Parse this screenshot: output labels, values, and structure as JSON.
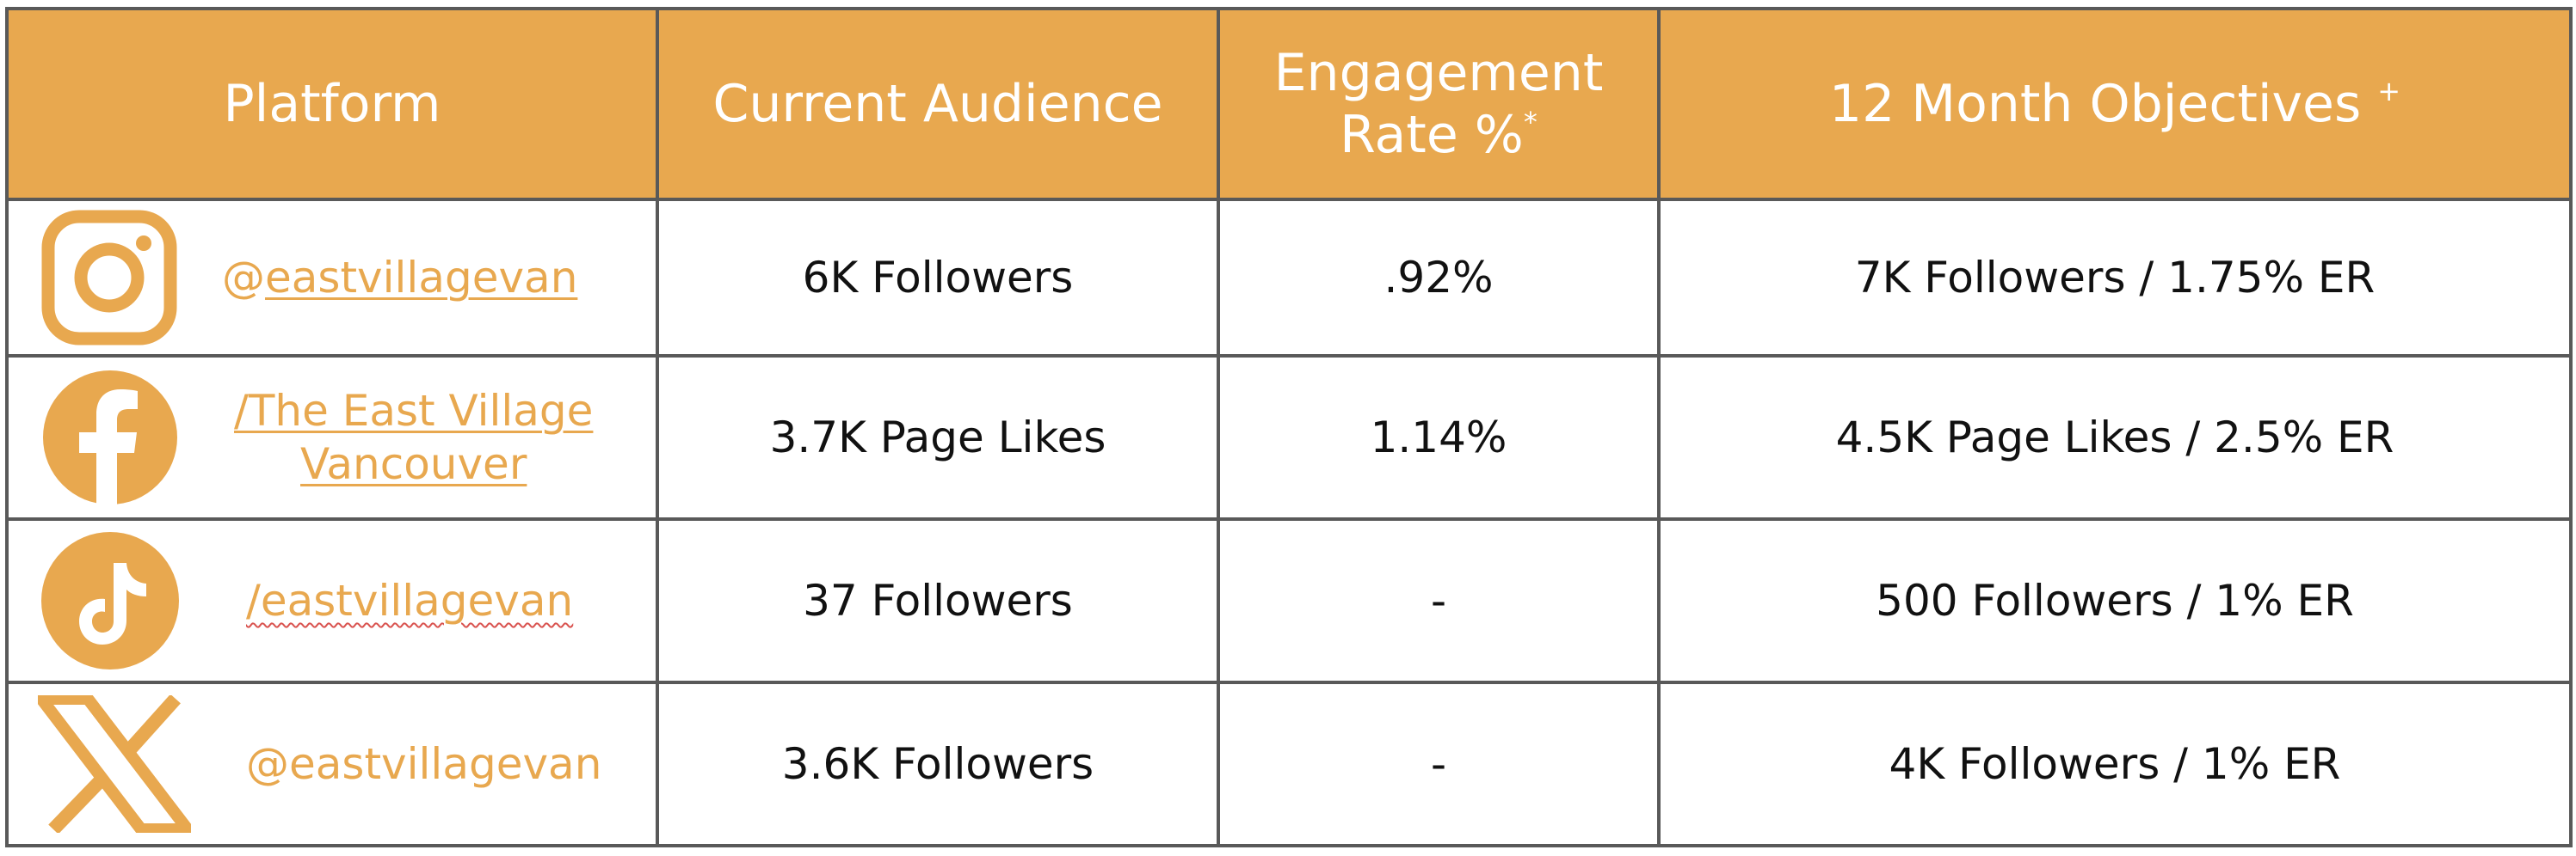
{
  "colors": {
    "header_bg": "#e8a84f",
    "accent": "#e8a84f",
    "border": "#595959",
    "text": "#111111"
  },
  "header": {
    "platform": "Platform",
    "audience": "Current Audience",
    "engagement_line1": "Engagement",
    "engagement_line2": "Rate %",
    "engagement_mark": "*",
    "objectives": "12 Month Objectives",
    "objectives_mark": "+"
  },
  "rows": [
    {
      "icon": "instagram-icon",
      "prefix": "@",
      "handle": "eastvillagevan",
      "audience": "6K Followers",
      "engagement": ".92%",
      "objective": "7K Followers / 1.75% ER"
    },
    {
      "icon": "facebook-icon",
      "handle_line1": "/The East Village",
      "handle_line2": "Vancouver",
      "audience": "3.7K Page Likes",
      "engagement": "1.14%",
      "objective": "4.5K Page Likes / 2.5% ER"
    },
    {
      "icon": "tiktok-icon",
      "handle": "/eastvillagevan",
      "audience": "37 Followers",
      "engagement": "-",
      "objective": "500 Followers / 1% ER"
    },
    {
      "icon": "x-icon",
      "handle": "@eastvillagevan",
      "audience": "3.6K Followers",
      "engagement": "-",
      "objective": "4K Followers / 1% ER"
    }
  ]
}
